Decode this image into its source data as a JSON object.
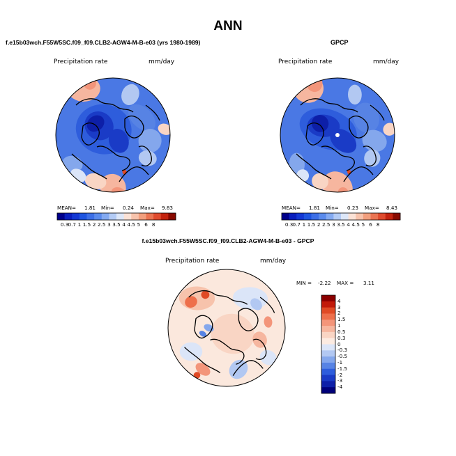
{
  "page_title": "ANN",
  "left_panel": {
    "title": "f.e15b03wch.F55W5SC.f09_f09.CLB2-AGW4-M-B-e03 (yrs 1980-1989)",
    "variable": "Precipitation rate",
    "units": "mm/day",
    "mean_label": "MEAN=",
    "mean": "1.81",
    "min_label": "Min=",
    "min": "0.24",
    "max_label": "Max=",
    "max": "9.83"
  },
  "right_panel": {
    "title": "GPCP",
    "variable": "Precipitation rate",
    "units": "mm/day",
    "mean_label": "MEAN=",
    "mean": "1.81",
    "min_label": "Min=",
    "min": "0.23",
    "max_label": "Max=",
    "max": "8.43"
  },
  "diff_panel": {
    "title": "f.e15b03wch.F55W5SC.f09_f09.CLB2-AGW4-M-B-e03 - GPCP",
    "variable": "Precipitation rate",
    "units": "mm/day",
    "min_label": "MIN =",
    "min": "-2.22",
    "max_label": "MAX =",
    "max": "3.11"
  },
  "precip_colorbar": {
    "tick_labels": [
      "0.3",
      "0.7",
      "1",
      "1.5",
      "2",
      "2.5",
      "3",
      "3.5",
      "4",
      "4.5",
      "5",
      "6",
      "8"
    ],
    "colors": [
      "#00008b",
      "#0a1fbe",
      "#1438d4",
      "#1f55e0",
      "#3d6fe6",
      "#5b8bec",
      "#84aaf1",
      "#b3cbf5",
      "#dde7f8",
      "#fbe2d6",
      "#f7c3ac",
      "#f29f7e",
      "#ea7452",
      "#df4b2e",
      "#c3230f",
      "#880a00"
    ]
  },
  "diff_colorbar": {
    "tick_labels": [
      "4",
      "3",
      "2",
      "1.5",
      "1",
      "0.5",
      "0.3",
      "0",
      "-0.3",
      "-0.5",
      "-1",
      "-1.5",
      "-2",
      "-3",
      "-4"
    ],
    "colors": [
      "#8b0000",
      "#c21a0a",
      "#e04a25",
      "#ee6f4b",
      "#f3957a",
      "#f6b69f",
      "#f9d5c4",
      "#fcebe1",
      "#dbe5f8",
      "#b2c8f2",
      "#84a7ec",
      "#5783e4",
      "#2e5ddc",
      "#1a3bc6",
      "#0d1fa8",
      "#00007a"
    ]
  }
}
